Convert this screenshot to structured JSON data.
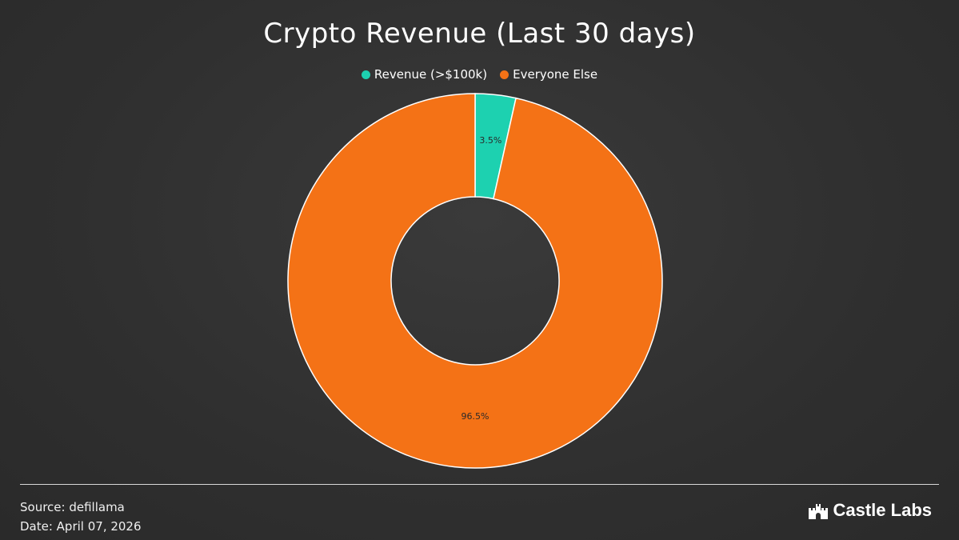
{
  "header": {
    "title": "Crypto Revenue (Last 30 days)"
  },
  "legend": [
    {
      "label": "Revenue (>$100k)",
      "color": "#1dd1b0"
    },
    {
      "label": "Everyone Else",
      "color": "#f47216"
    }
  ],
  "chart_data": {
    "type": "pie",
    "title": "Crypto Revenue (Last 30 days)",
    "donut": true,
    "legend_position": "top-center",
    "slices": [
      {
        "label": "Revenue (>$100k)",
        "value": 3.5,
        "display": "3.5%",
        "color": "#1dd1b0"
      },
      {
        "label": "Everyone Else",
        "value": 96.5,
        "display": "96.5%",
        "color": "#f47216"
      }
    ]
  },
  "footer": {
    "source": "Source: defillama",
    "date": "Date: April 07, 2026",
    "brand": "Castle Labs",
    "brand_icon": "castle-icon"
  }
}
